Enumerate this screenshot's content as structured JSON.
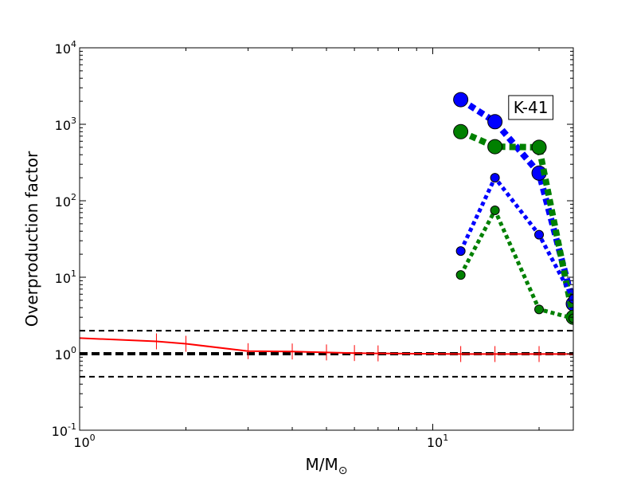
{
  "chart_data": {
    "type": "line",
    "title": "",
    "xlabel": "M/M",
    "xlabel_subscript": "⊙",
    "ylabel": "Overproduction factor",
    "xscale": "log",
    "yscale": "log",
    "xlim": [
      1,
      25
    ],
    "ylim": [
      0.1,
      10000
    ],
    "x_ticks": [
      {
        "value": 1,
        "base": "10",
        "exp": "0"
      },
      {
        "value": 10,
        "base": "10",
        "exp": "1"
      }
    ],
    "y_ticks": [
      {
        "value": 0.1,
        "base": "10",
        "exp": "-1"
      },
      {
        "value": 1,
        "base": "10",
        "exp": "0"
      },
      {
        "value": 10,
        "base": "10",
        "exp": "1"
      },
      {
        "value": 100,
        "base": "10",
        "exp": "2"
      },
      {
        "value": 1000,
        "base": "10",
        "exp": "3"
      },
      {
        "value": 10000,
        "base": "10",
        "exp": "4"
      }
    ],
    "grid": false,
    "reference_lines": [
      {
        "y": 2.0,
        "style": "dashed",
        "color": "#000000",
        "weight": "thin"
      },
      {
        "y": 1.0,
        "style": "dashed",
        "color": "#000000",
        "weight": "thick"
      },
      {
        "y": 0.5,
        "style": "dashed",
        "color": "#000000",
        "weight": "thin"
      }
    ],
    "series": [
      {
        "color": "#ff0000",
        "style": "solid",
        "marker": "vertical-tick",
        "x": [
          1,
          1.65,
          2,
          3,
          4,
          5,
          6,
          7,
          12,
          15,
          20,
          25
        ],
        "y": [
          1.6,
          1.45,
          1.35,
          1.08,
          1.07,
          1.04,
          1.02,
          1.01,
          0.99,
          0.99,
          0.99,
          0.99
        ]
      },
      {
        "color": "#0000ff",
        "style": "dotted",
        "weight": "thick",
        "marker": "circle-large",
        "x": [
          12,
          15,
          20,
          25
        ],
        "y": [
          2100,
          1080,
          230,
          4.5
        ]
      },
      {
        "color": "#008000",
        "style": "dotted",
        "weight": "thick",
        "marker": "circle-large",
        "x": [
          12,
          15,
          20,
          25
        ],
        "y": [
          800,
          510,
          500,
          3.0
        ]
      },
      {
        "color": "#0000ff",
        "style": "dotted",
        "weight": "medium",
        "marker": "circle-small",
        "x": [
          12,
          15,
          20,
          25
        ],
        "y": [
          22,
          200,
          36,
          5.2
        ]
      },
      {
        "color": "#008000",
        "style": "dotted",
        "weight": "medium",
        "marker": "circle-small",
        "x": [
          12,
          15,
          20,
          25
        ],
        "y": [
          10.7,
          75,
          3.8,
          2.9
        ]
      }
    ],
    "annotations": [
      {
        "text": "K-41",
        "x": 16.4,
        "y": 1400,
        "boxed": true
      }
    ]
  }
}
